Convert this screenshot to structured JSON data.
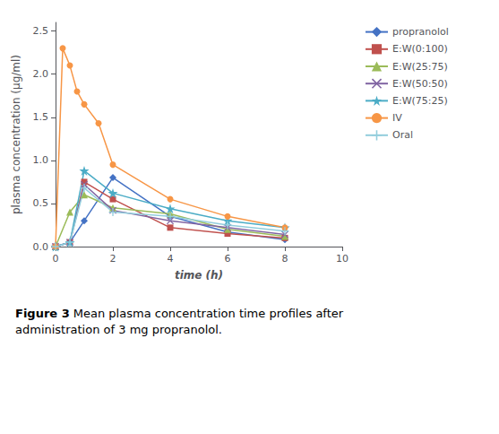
{
  "chart_data": {
    "type": "line",
    "xlabel": "time (h)",
    "ylabel": "plasma concentration (µg/ml)",
    "annotations": [
      "Figure 3",
      "Mean plasma concentration time profiles after\nadministration of 3 mg propranolol."
    ],
    "xlim": [
      0,
      10
    ],
    "ylim": [
      0,
      2.6
    ],
    "xticks": [
      0,
      2,
      4,
      6,
      8,
      10
    ],
    "yticks": [
      {
        "value": 0,
        "label": "0.0"
      },
      0.5,
      {
        "value": 1,
        "label": "1.0"
      },
      1.5,
      {
        "value": 2,
        "label": "2.0"
      },
      2.5
    ],
    "grid": false,
    "legend": "right",
    "series": [
      {
        "name": "propranolol",
        "color": "#4472C4",
        "marker": "diamond",
        "x": [
          0,
          0.5,
          1,
          2,
          4,
          6,
          8
        ],
        "values": [
          0,
          0.05,
          0.3,
          0.8,
          0.35,
          0.17,
          0.08
        ]
      },
      {
        "name": "E:W(0:100)",
        "color": "#C0504D",
        "marker": "square",
        "x": [
          0,
          0.5,
          1,
          2,
          4,
          6,
          8
        ],
        "values": [
          0,
          0.05,
          0.75,
          0.55,
          0.22,
          0.15,
          0.1
        ]
      },
      {
        "name": "E:W(25:75)",
        "color": "#9BBB59",
        "marker": "triangle",
        "x": [
          0,
          0.5,
          1,
          2,
          4,
          6,
          8
        ],
        "values": [
          0,
          0.4,
          0.6,
          0.45,
          0.38,
          0.2,
          0.12
        ]
      },
      {
        "name": "E:W(50:50)",
        "color": "#8064A2",
        "marker": "x",
        "x": [
          0,
          0.5,
          1,
          2,
          4,
          6,
          8
        ],
        "values": [
          0,
          0.05,
          0.72,
          0.42,
          0.3,
          0.22,
          0.14
        ]
      },
      {
        "name": "E:W(75:25)",
        "color": "#4BACC6",
        "marker": "star",
        "x": [
          0,
          0.5,
          1,
          2,
          4,
          6,
          8
        ],
        "values": [
          0,
          0.05,
          0.88,
          0.62,
          0.44,
          0.3,
          0.22
        ]
      },
      {
        "name": "IV",
        "color": "#F79646",
        "marker": "circle",
        "x": [
          0,
          0.25,
          0.5,
          0.75,
          1.0,
          1.5,
          2,
          4,
          6,
          8
        ],
        "values": [
          0,
          2.3,
          2.1,
          1.8,
          1.65,
          1.43,
          0.95,
          0.55,
          0.35,
          0.22
        ]
      },
      {
        "name": "Oral",
        "color": "#92CDDC",
        "marker": "plus",
        "x": [
          0,
          0.5,
          1,
          2,
          4,
          6,
          8
        ],
        "values": [
          0,
          0.05,
          0.68,
          0.4,
          0.35,
          0.25,
          0.18
        ]
      }
    ]
  }
}
